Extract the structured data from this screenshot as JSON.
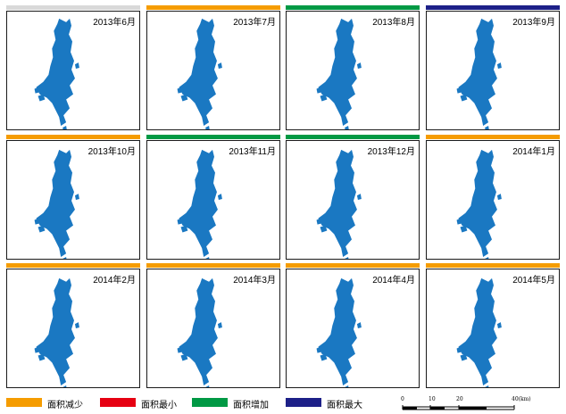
{
  "colors": {
    "lake": "#1a78c2",
    "decrease": "#f59c00",
    "minimum": "#e60012",
    "increase": "#009944",
    "maximum": "#1d2088",
    "none": "#d9d9d9"
  },
  "panels": [
    {
      "title": "2013年6月",
      "status": "none"
    },
    {
      "title": "2013年7月",
      "status": "decrease"
    },
    {
      "title": "2013年8月",
      "status": "increase"
    },
    {
      "title": "2013年9月",
      "status": "maximum"
    },
    {
      "title": "2013年10月",
      "status": "decrease"
    },
    {
      "title": "2013年11月",
      "status": "increase"
    },
    {
      "title": "2013年12月",
      "status": "increase"
    },
    {
      "title": "2014年1月",
      "status": "decrease"
    },
    {
      "title": "2014年2月",
      "status": "decrease"
    },
    {
      "title": "2014年3月",
      "status": "decrease"
    },
    {
      "title": "2014年4月",
      "status": "decrease"
    },
    {
      "title": "2014年5月",
      "status": "decrease"
    }
  ],
  "legend": [
    {
      "label": "面积减少",
      "color": "#f59c00"
    },
    {
      "label": "面积最小",
      "color": "#e60012"
    },
    {
      "label": "面积增加",
      "color": "#009944"
    },
    {
      "label": "面积最大",
      "color": "#1d2088"
    }
  ],
  "scalebar": {
    "labels": [
      "0",
      "10",
      "20",
      "40(km)"
    ]
  }
}
